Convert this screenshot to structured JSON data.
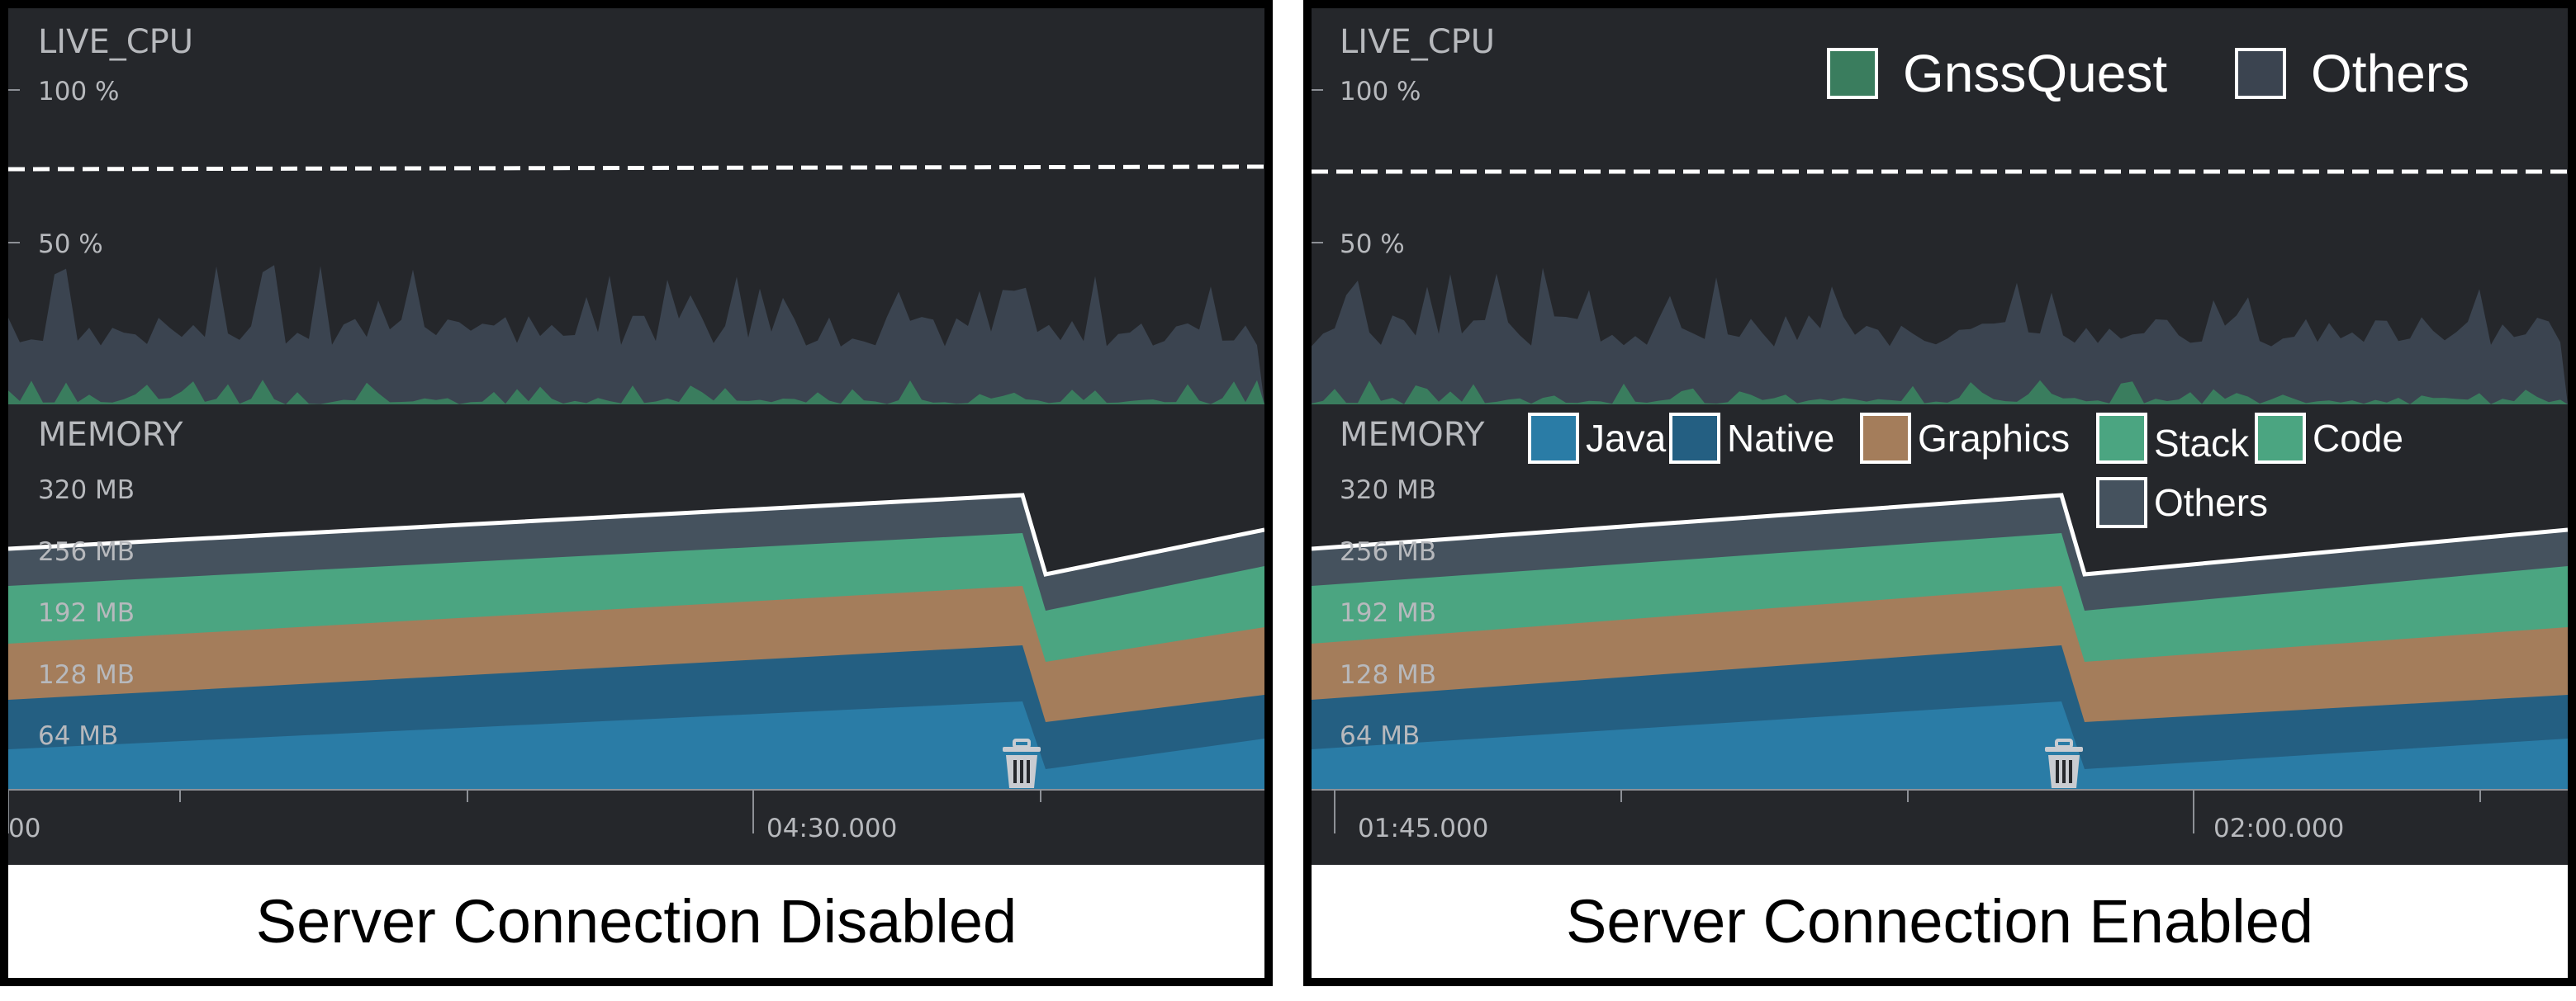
{
  "colors": {
    "background": "#25272b",
    "cpu_app": "#3a7d5e",
    "cpu_others": "#3b4450",
    "java": "#2a7ca6",
    "native": "#245f82",
    "graphics": "#a47d5b",
    "stack": "#4ba581",
    "code": "#4ba581",
    "mem_others": "#45525e"
  },
  "panels": [
    {
      "id": "left",
      "caption": "Server Connection Disabled",
      "cpu": {
        "title": "LIVE_CPU",
        "tick_100": "100 %",
        "tick_50": "50 %"
      },
      "memory": {
        "title": "MEMORY",
        "ticks": [
          "320 MB",
          "256 MB",
          "192 MB",
          "128 MB",
          "64 MB"
        ]
      },
      "time_labels": [
        "00",
        "04:30.000"
      ],
      "gc_icon": "trash-icon"
    },
    {
      "id": "right",
      "caption": "Server Connection Enabled",
      "cpu": {
        "title": "LIVE_CPU",
        "tick_100": "100 %",
        "tick_50": "50 %"
      },
      "cpu_legend": [
        "GnssQuest",
        "Others"
      ],
      "memory": {
        "title": "MEMORY",
        "ticks": [
          "320 MB",
          "256 MB",
          "192 MB",
          "128 MB",
          "64 MB"
        ]
      },
      "memory_legend": [
        "Java",
        "Native",
        "Graphics",
        "Stack",
        "Code",
        "Others"
      ],
      "time_labels": [
        "01:45.000",
        "02:00.000"
      ],
      "gc_icon": "trash-icon"
    }
  ]
}
